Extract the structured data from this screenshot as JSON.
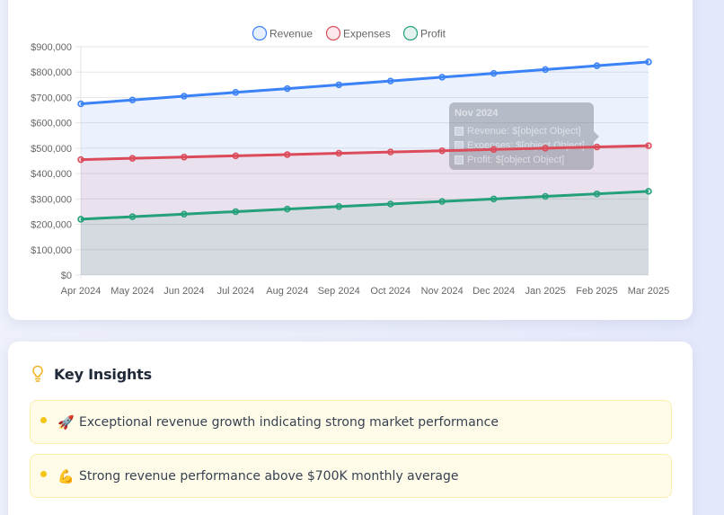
{
  "chart_data": {
    "type": "line",
    "area_fill": true,
    "title": "",
    "xlabel": "",
    "ylabel": "",
    "categories": [
      "Apr 2024",
      "May 2024",
      "Jun 2024",
      "Jul 2024",
      "Aug 2024",
      "Sep 2024",
      "Oct 2024",
      "Nov 2024",
      "Dec 2024",
      "Jan 2025",
      "Feb 2025",
      "Mar 2025"
    ],
    "series": [
      {
        "name": "Revenue",
        "color": "#3b82f6",
        "values": [
          675000,
          690000,
          705000,
          720000,
          735000,
          750000,
          765000,
          780000,
          795000,
          810000,
          825000,
          840000
        ]
      },
      {
        "name": "Expenses",
        "color": "#dc4b5a",
        "values": [
          455000,
          460000,
          465000,
          470000,
          475000,
          480000,
          485000,
          490000,
          495000,
          500000,
          505000,
          510000
        ]
      },
      {
        "name": "Profit",
        "color": "#24a07a",
        "values": [
          220000,
          230000,
          240000,
          250000,
          260000,
          270000,
          280000,
          290000,
          300000,
          310000,
          320000,
          330000
        ]
      }
    ],
    "ylim": [
      0,
      900000
    ],
    "yticks": [
      "$0",
      "$100,000",
      "$200,000",
      "$300,000",
      "$400,000",
      "$500,000",
      "$600,000",
      "$700,000",
      "$800,000",
      "$900,000"
    ],
    "grid": true,
    "legend_position": "top"
  },
  "legend": {
    "items": [
      {
        "label": "Revenue",
        "color": "#3b82f6"
      },
      {
        "label": "Expenses",
        "color": "#dc4b5a"
      },
      {
        "label": "Profit",
        "color": "#24a07a"
      }
    ]
  },
  "tooltip": {
    "title": "Nov 2024",
    "rows": [
      "Revenue: $[object Object]",
      "Expenses: $[object Object]",
      "Profit: $[object Object]"
    ]
  },
  "insights": {
    "title": "Key Insights",
    "icon": "lightbulb-icon",
    "items": [
      {
        "emoji": "🚀",
        "text": "Exceptional revenue growth indicating strong market performance"
      },
      {
        "emoji": "💪",
        "text": "Strong revenue performance above $700K monthly average"
      }
    ]
  },
  "colors": {
    "background": "#e9edfb",
    "card": "#ffffff",
    "insight_bg": "#fefbe8",
    "insight_border": "#fbefb0",
    "bullet": "#f5c518"
  }
}
